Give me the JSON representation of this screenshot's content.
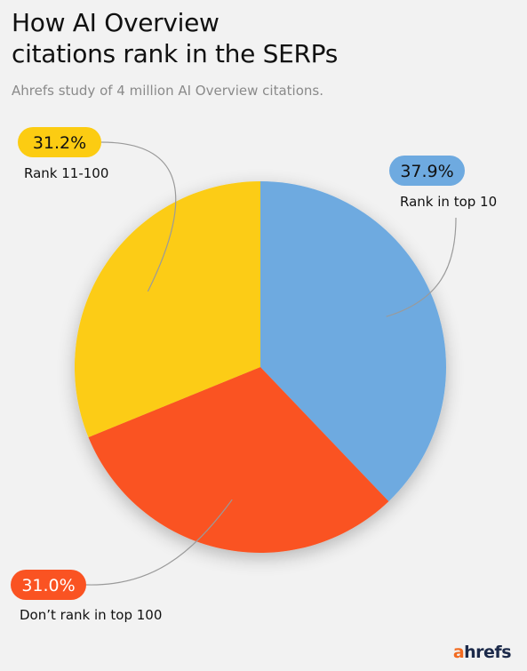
{
  "header": {
    "title_line1": "How AI Overview",
    "title_line2": "citations rank in the SERPs",
    "subtitle": "Ahrefs study of 4 million AI Overview citations."
  },
  "chart_data": {
    "type": "pie",
    "title": "How AI Overview citations rank in the SERPs",
    "subtitle": "Ahrefs study of 4 million AI Overview citations.",
    "slices": [
      {
        "label": "Rank in top 10",
        "value": 37.9,
        "display": "37.9%",
        "color": "#6eaae0",
        "text_color": "#111111"
      },
      {
        "label": "Don’t rank in top 100",
        "value": 31.0,
        "display": "31.0%",
        "color": "#fa5322",
        "text_color": "#ffffff"
      },
      {
        "label": "Rank 11-100",
        "value": 31.2,
        "display": "31.2%",
        "color": "#fccc12",
        "text_color": "#111111"
      }
    ],
    "start": "12 o'clock",
    "direction": "clockwise",
    "legend": "none"
  },
  "brand": {
    "logo_first": "a",
    "logo_rest": "hrefs",
    "colors": {
      "accent": "#f26b21",
      "dark": "#1c2a4a"
    }
  }
}
